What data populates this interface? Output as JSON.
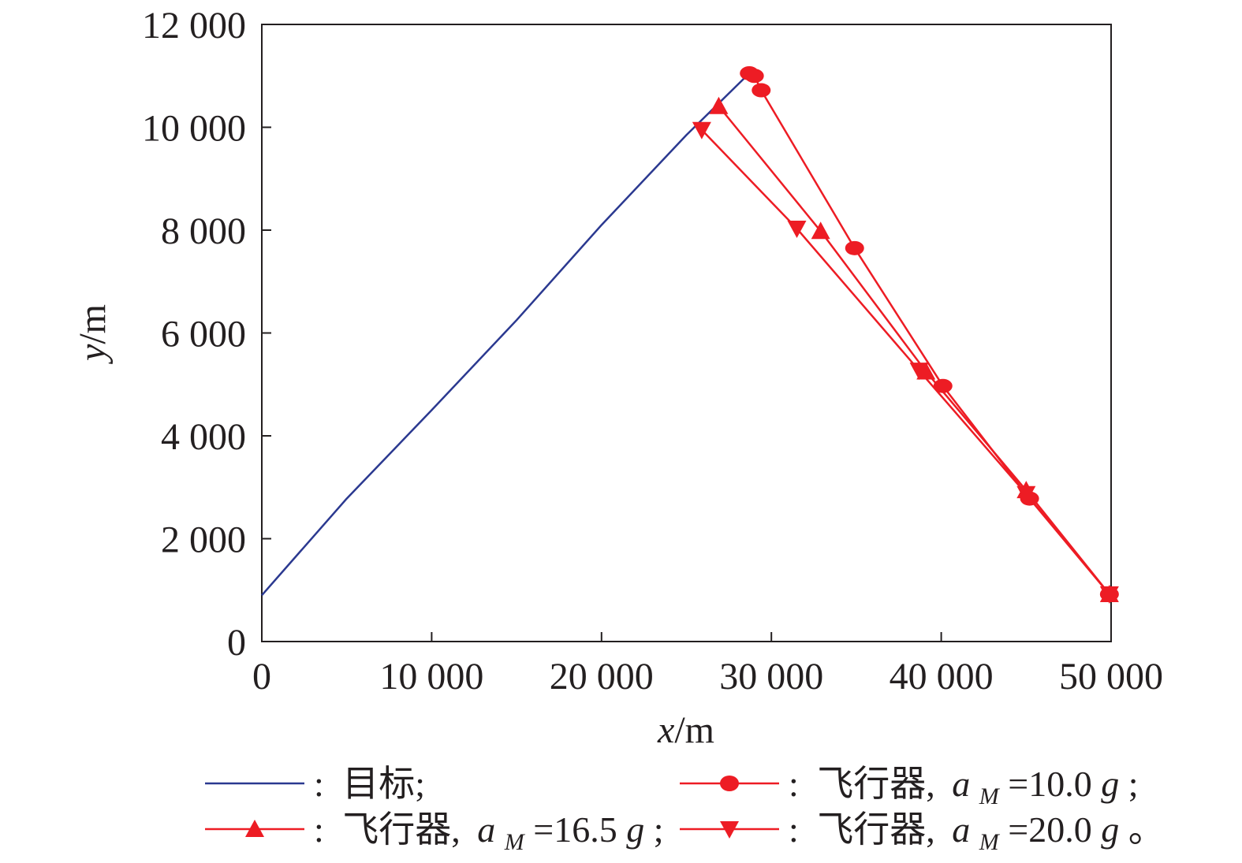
{
  "chart_data": {
    "type": "line",
    "xlabel": "x/m",
    "ylabel": "y/m",
    "xlim": [
      0,
      50000
    ],
    "ylim": [
      0,
      12000
    ],
    "x_ticks": [
      0,
      10000,
      20000,
      30000,
      40000,
      50000
    ],
    "x_tick_labels": [
      "0",
      "10 000",
      "20 000",
      "30 000",
      "40 000",
      "50 000"
    ],
    "y_ticks": [
      0,
      2000,
      4000,
      6000,
      8000,
      10000,
      12000
    ],
    "y_tick_labels": [
      "0",
      "2 000",
      "4 000",
      "6 000",
      "8 000",
      "10 000",
      "12 000"
    ],
    "grid": false,
    "legend_position": "bottom",
    "series": [
      {
        "name": "目标",
        "color": "#2b3990",
        "marker": "none",
        "x": [
          0,
          5000,
          10000,
          15000,
          20000,
          25000,
          28700
        ],
        "y": [
          900,
          2780,
          4500,
          6250,
          8100,
          9850,
          11050
        ]
      },
      {
        "name": "飞行器, a_M=10.0g",
        "color": "#ed1c24",
        "marker": "circle",
        "x": [
          28700,
          29000,
          29400,
          34900,
          40100,
          45200,
          49900
        ],
        "y": [
          11050,
          11000,
          10720,
          7650,
          4970,
          2780,
          920
        ]
      },
      {
        "name": "飞行器, a_M=16.5g",
        "color": "#ed1c24",
        "marker": "triangle-up",
        "x": [
          26900,
          32900,
          39100,
          45000,
          49900
        ],
        "y": [
          10410,
          7980,
          5250,
          2940,
          920
        ]
      },
      {
        "name": "飞行器, a_M=20.0g",
        "color": "#ed1c24",
        "marker": "triangle-down",
        "x": [
          25900,
          31500,
          38700,
          45000,
          49900
        ],
        "y": [
          9950,
          8030,
          5270,
          2870,
          920
        ]
      }
    ]
  },
  "legend": {
    "sep": ":",
    "target": {
      "text": "目标;"
    },
    "m10": {
      "prefix": "飞行器,",
      "a": "a",
      "sub": "M",
      "eq": "=10.0",
      "g": "g",
      "suffix": ";"
    },
    "m165": {
      "prefix": "飞行器,",
      "a": "a",
      "sub": "M",
      "eq": "=16.5",
      "g": "g",
      "suffix": ";"
    },
    "m20": {
      "prefix": "飞行器,",
      "a": "a",
      "sub": "M",
      "eq": "=20.0",
      "g": "g",
      "suffix": "。"
    }
  }
}
